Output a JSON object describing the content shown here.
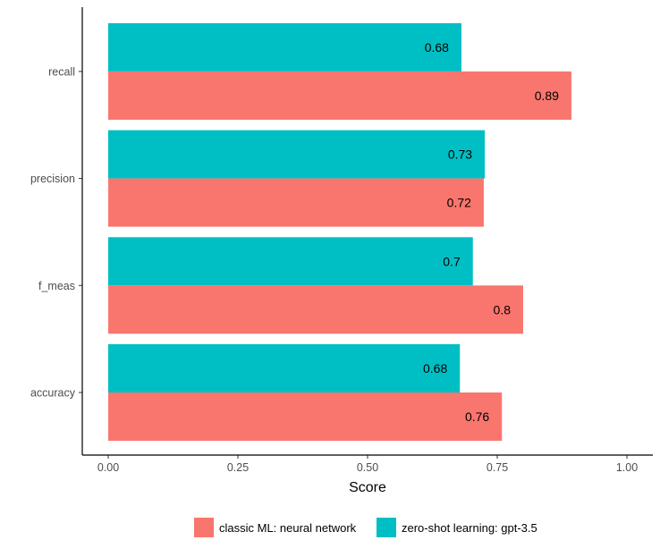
{
  "chart_data": {
    "type": "bar",
    "orientation": "horizontal",
    "categories": [
      "accuracy",
      "f_meas",
      "precision",
      "recall"
    ],
    "series": [
      {
        "name": "classic ML: neural network",
        "color": "#F8766D",
        "values": [
          0.759,
          0.8,
          0.724,
          0.893
        ],
        "labels": [
          "0.76",
          "0.8",
          "0.72",
          "0.89"
        ]
      },
      {
        "name": "zero-shot learning: gpt-3.5",
        "color": "#00BFC4",
        "values": [
          0.678,
          0.703,
          0.726,
          0.681
        ],
        "labels": [
          "0.68",
          "0.7",
          "0.73",
          "0.68"
        ]
      }
    ],
    "xlabel": "Score",
    "ylabel": "",
    "xlim": [
      0,
      1
    ],
    "xticks": [
      0,
      0.25,
      0.5,
      0.75,
      1
    ],
    "xtick_labels": [
      "0.00",
      "0.25",
      "0.50",
      "0.75",
      "1.00"
    ],
    "grid": false,
    "legend_position": "bottom"
  }
}
